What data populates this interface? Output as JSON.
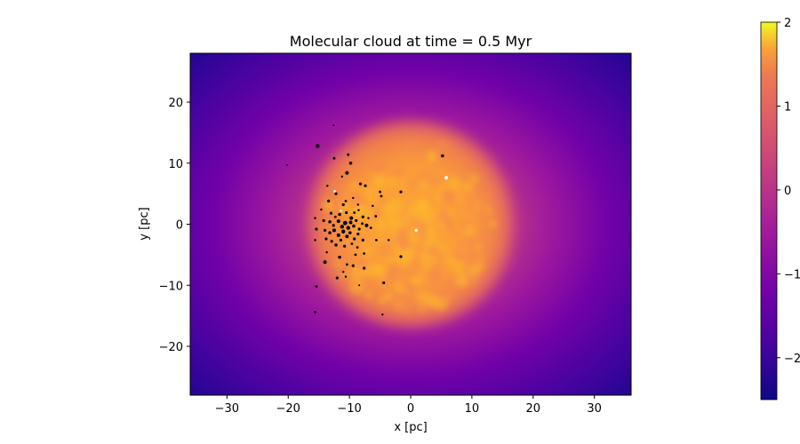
{
  "chart_data": {
    "type": "heatmap",
    "title": "Molecular cloud at time = 0.5 Myr",
    "xlabel": "x [pc]",
    "ylabel": "y [pc]",
    "xlim": [
      -36,
      36
    ],
    "ylim": [
      -28,
      28
    ],
    "xticks": [
      -30,
      -20,
      -10,
      0,
      10,
      20,
      30
    ],
    "yticks": [
      -20,
      -10,
      0,
      10,
      20
    ],
    "xtick_labels": [
      "−30",
      "−20",
      "−10",
      "0",
      "10",
      "20",
      "30"
    ],
    "ytick_labels": [
      "−20",
      "−10",
      "0",
      "10",
      "20"
    ],
    "colormap": "plasma",
    "colorbar": {
      "range": [
        -2.5,
        2
      ],
      "ticks": [
        2,
        1,
        0,
        -1,
        -2
      ],
      "tick_labels": [
        "2",
        "1",
        "0",
        "−1",
        "−2"
      ]
    },
    "cloud": {
      "center": [
        0,
        0
      ],
      "radius_pc": 15,
      "peak_value": 1.5,
      "edge_value": -2.4
    },
    "stars_black": [
      {
        "x": -15.2,
        "y": 12.8,
        "s": 2.2
      },
      {
        "x": -12.6,
        "y": 16.2,
        "s": 1.0
      },
      {
        "x": -20.2,
        "y": 9.7,
        "s": 1.0
      },
      {
        "x": -12.5,
        "y": 10.8,
        "s": 1.5
      },
      {
        "x": -10.2,
        "y": 11.4,
        "s": 1.5
      },
      {
        "x": -9.8,
        "y": 10.0,
        "s": 1.8
      },
      {
        "x": -10.4,
        "y": 8.4,
        "s": 2.0
      },
      {
        "x": -11.2,
        "y": 7.8,
        "s": 1.2
      },
      {
        "x": -8.2,
        "y": 6.6,
        "s": 1.6
      },
      {
        "x": -7.4,
        "y": 6.3,
        "s": 1.6
      },
      {
        "x": -5.0,
        "y": 5.3,
        "s": 1.4
      },
      {
        "x": -1.6,
        "y": 5.3,
        "s": 1.6
      },
      {
        "x": -13.6,
        "y": 6.3,
        "s": 1.2
      },
      {
        "x": -12.2,
        "y": 5.0,
        "s": 1.6
      },
      {
        "x": -9.4,
        "y": 4.3,
        "s": 1.2
      },
      {
        "x": -8.6,
        "y": 3.2,
        "s": 1.2
      },
      {
        "x": -4.8,
        "y": 4.6,
        "s": 1.4
      },
      {
        "x": -6.2,
        "y": 3.0,
        "s": 1.2
      },
      {
        "x": -13.4,
        "y": 3.8,
        "s": 1.6
      },
      {
        "x": -11.0,
        "y": 3.2,
        "s": 1.6
      },
      {
        "x": -10.6,
        "y": 3.8,
        "s": 1.4
      },
      {
        "x": -14.6,
        "y": 2.4,
        "s": 1.2
      },
      {
        "x": -13.0,
        "y": 1.8,
        "s": 1.6
      },
      {
        "x": -12.3,
        "y": 1.2,
        "s": 1.4
      },
      {
        "x": -11.6,
        "y": 1.6,
        "s": 1.8
      },
      {
        "x": -10.5,
        "y": 1.9,
        "s": 1.6
      },
      {
        "x": -9.7,
        "y": 1.0,
        "s": 2.0
      },
      {
        "x": -9.2,
        "y": 1.9,
        "s": 1.4
      },
      {
        "x": -8.5,
        "y": 2.3,
        "s": 1.2
      },
      {
        "x": -7.8,
        "y": 1.2,
        "s": 1.6
      },
      {
        "x": -6.9,
        "y": 1.0,
        "s": 1.2
      },
      {
        "x": -5.7,
        "y": 1.3,
        "s": 1.4
      },
      {
        "x": -15.6,
        "y": 1.0,
        "s": 1.2
      },
      {
        "x": -14.2,
        "y": 0.6,
        "s": 1.6
      },
      {
        "x": -13.2,
        "y": 0.4,
        "s": 1.8
      },
      {
        "x": -12.6,
        "y": -0.2,
        "s": 1.6
      },
      {
        "x": -11.8,
        "y": 0.5,
        "s": 2.0
      },
      {
        "x": -11.2,
        "y": -0.4,
        "s": 2.2
      },
      {
        "x": -10.7,
        "y": 0.2,
        "s": 2.4
      },
      {
        "x": -10.2,
        "y": -0.6,
        "s": 2.2
      },
      {
        "x": -9.8,
        "y": 0.3,
        "s": 2.0
      },
      {
        "x": -9.3,
        "y": -0.3,
        "s": 1.8
      },
      {
        "x": -8.9,
        "y": 0.6,
        "s": 1.6
      },
      {
        "x": -8.4,
        "y": -0.8,
        "s": 1.6
      },
      {
        "x": -7.9,
        "y": 0.1,
        "s": 1.4
      },
      {
        "x": -7.2,
        "y": -0.2,
        "s": 2.0
      },
      {
        "x": -6.5,
        "y": -0.6,
        "s": 1.4
      },
      {
        "x": -15.4,
        "y": -0.8,
        "s": 1.6
      },
      {
        "x": -14.0,
        "y": -1.0,
        "s": 1.6
      },
      {
        "x": -13.2,
        "y": -1.4,
        "s": 1.8
      },
      {
        "x": -12.5,
        "y": -1.0,
        "s": 2.0
      },
      {
        "x": -11.8,
        "y": -1.8,
        "s": 2.0
      },
      {
        "x": -11.0,
        "y": -1.2,
        "s": 2.2
      },
      {
        "x": -10.4,
        "y": -2.0,
        "s": 2.0
      },
      {
        "x": -9.9,
        "y": -1.4,
        "s": 1.8
      },
      {
        "x": -9.2,
        "y": -2.4,
        "s": 1.6
      },
      {
        "x": -8.6,
        "y": -1.6,
        "s": 1.6
      },
      {
        "x": -7.8,
        "y": -2.6,
        "s": 1.6
      },
      {
        "x": -5.6,
        "y": -2.6,
        "s": 1.4
      },
      {
        "x": -3.6,
        "y": -2.6,
        "s": 1.2
      },
      {
        "x": -15.6,
        "y": -2.6,
        "s": 1.2
      },
      {
        "x": -13.8,
        "y": -2.4,
        "s": 1.6
      },
      {
        "x": -12.9,
        "y": -2.8,
        "s": 1.6
      },
      {
        "x": -12.2,
        "y": -3.4,
        "s": 1.8
      },
      {
        "x": -11.4,
        "y": -2.6,
        "s": 1.6
      },
      {
        "x": -10.8,
        "y": -3.6,
        "s": 1.6
      },
      {
        "x": -9.6,
        "y": -3.2,
        "s": 1.4
      },
      {
        "x": -8.7,
        "y": -3.8,
        "s": 1.4
      },
      {
        "x": -13.7,
        "y": -4.6,
        "s": 1.2
      },
      {
        "x": -11.6,
        "y": -5.4,
        "s": 1.8
      },
      {
        "x": -9.0,
        "y": -5.0,
        "s": 1.4
      },
      {
        "x": -7.6,
        "y": -4.8,
        "s": 1.4
      },
      {
        "x": -1.6,
        "y": -5.3,
        "s": 1.6
      },
      {
        "x": -14.0,
        "y": -6.2,
        "s": 2.0
      },
      {
        "x": -10.4,
        "y": -6.6,
        "s": 1.4
      },
      {
        "x": -9.4,
        "y": -6.8,
        "s": 1.6
      },
      {
        "x": -7.6,
        "y": -7.2,
        "s": 1.6
      },
      {
        "x": -11.0,
        "y": -7.8,
        "s": 1.2
      },
      {
        "x": -12.0,
        "y": -8.8,
        "s": 1.6
      },
      {
        "x": -10.6,
        "y": -8.6,
        "s": 1.2
      },
      {
        "x": -4.4,
        "y": -9.6,
        "s": 1.6
      },
      {
        "x": -8.4,
        "y": -10.0,
        "s": 1.0
      },
      {
        "x": -15.4,
        "y": -10.2,
        "s": 1.4
      },
      {
        "x": -15.6,
        "y": -14.4,
        "s": 1.4
      },
      {
        "x": -4.6,
        "y": -14.8,
        "s": 1.2
      },
      {
        "x": 5.2,
        "y": 11.2,
        "s": 1.8
      }
    ],
    "stars_white": [
      {
        "x": 5.8,
        "y": 7.6,
        "s": 2.0
      },
      {
        "x": 0.9,
        "y": -1.0,
        "s": 1.8
      },
      {
        "x": -12.4,
        "y": 5.4,
        "s": 1.4
      },
      {
        "x": -11.4,
        "y": 2.2,
        "s": 1.2
      }
    ]
  }
}
